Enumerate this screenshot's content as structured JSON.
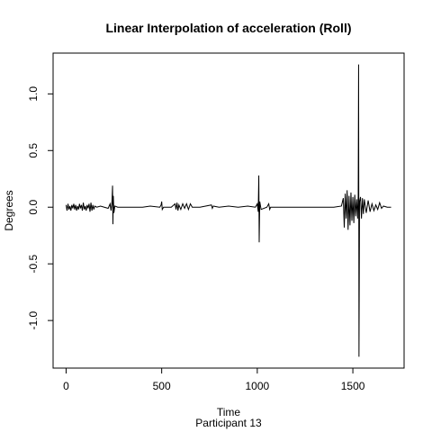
{
  "chart_data": {
    "type": "line",
    "title": "Linear Interpolation of acceleration (Roll)",
    "subtitle": "Participant  13",
    "x_label": "Time",
    "y_label": "Degrees",
    "xlim": [
      -68,
      1768
    ],
    "ylim": [
      -1.42,
      1.36
    ],
    "xticks": [
      0,
      500,
      1000,
      1500
    ],
    "yticks": [
      {
        "value": -1,
        "label": "-1.0"
      },
      {
        "value": -0.5,
        "label": "-0.5"
      },
      {
        "value": 0,
        "label": "0.0"
      },
      {
        "value": 0.5,
        "label": "0.5"
      },
      {
        "value": 1,
        "label": "1.0"
      }
    ],
    "grid": false,
    "series": [
      {
        "color": "#000000",
        "x": [
          0,
          5,
          10,
          15,
          20,
          25,
          30,
          35,
          40,
          45,
          50,
          55,
          60,
          65,
          70,
          75,
          80,
          85,
          90,
          95,
          100,
          105,
          110,
          115,
          120,
          125,
          130,
          135,
          140,
          145,
          150,
          160,
          180,
          200,
          220,
          230,
          235,
          240,
          243,
          245,
          247,
          250,
          255,
          270,
          300,
          350,
          400,
          440,
          490,
          497,
          500,
          503,
          510,
          550,
          570,
          575,
          580,
          585,
          590,
          600,
          610,
          620,
          630,
          640,
          650,
          660,
          700,
          760,
          765,
          770,
          800,
          850,
          900,
          950,
          990,
          1000,
          1005,
          1008,
          1010,
          1013,
          1020,
          1050,
          1060,
          1065,
          1070,
          1100,
          1200,
          1300,
          1400,
          1440,
          1450,
          1455,
          1460,
          1465,
          1470,
          1475,
          1480,
          1485,
          1490,
          1495,
          1500,
          1505,
          1510,
          1515,
          1520,
          1525,
          1528,
          1530,
          1532,
          1535,
          1540,
          1545,
          1550,
          1555,
          1560,
          1570,
          1580,
          1590,
          1600,
          1610,
          1620,
          1630,
          1640,
          1650,
          1660,
          1680,
          1700
        ],
        "values": [
          0.02,
          -0.03,
          0.03,
          -0.02,
          0.01,
          -0.03,
          0.02,
          -0.01,
          0.03,
          -0.02,
          0.02,
          -0.03,
          0.01,
          -0.02,
          0.03,
          -0.01,
          0.02,
          -0.03,
          0.04,
          -0.02,
          0.01,
          -0.03,
          0.02,
          -0.01,
          0.03,
          -0.04,
          0.04,
          -0.03,
          0.02,
          -0.02,
          0.01,
          0,
          0.01,
          0,
          -0.01,
          0.03,
          -0.03,
          0.05,
          0.19,
          -0.15,
          0.1,
          -0.05,
          0.01,
          0,
          0,
          0,
          0,
          0.01,
          0,
          0.02,
          0.05,
          -0.02,
          0,
          0,
          0.03,
          -0.02,
          0.04,
          -0.03,
          0.02,
          -0.02,
          0.03,
          -0.01,
          0.03,
          -0.02,
          0.03,
          0,
          0,
          0.02,
          -0.01,
          0.01,
          0,
          0.01,
          0,
          0.01,
          0,
          0.03,
          -0.04,
          0.28,
          -0.31,
          0.05,
          -0.02,
          0,
          0.03,
          -0.02,
          0,
          0,
          0,
          0,
          0,
          0.01,
          0.08,
          -0.18,
          0.12,
          -0.1,
          0.15,
          -0.2,
          0.1,
          -0.16,
          0.13,
          -0.12,
          0.09,
          -0.14,
          0.11,
          -0.08,
          0.07,
          -0.1,
          0.1,
          1.26,
          -1.32,
          0.05,
          0.09,
          -0.1,
          0.08,
          -0.06,
          0.07,
          -0.05,
          0.06,
          -0.04,
          0.03,
          -0.03,
          0.02,
          -0.02,
          0.04,
          -0.01,
          0.01,
          0,
          0
        ]
      }
    ]
  }
}
